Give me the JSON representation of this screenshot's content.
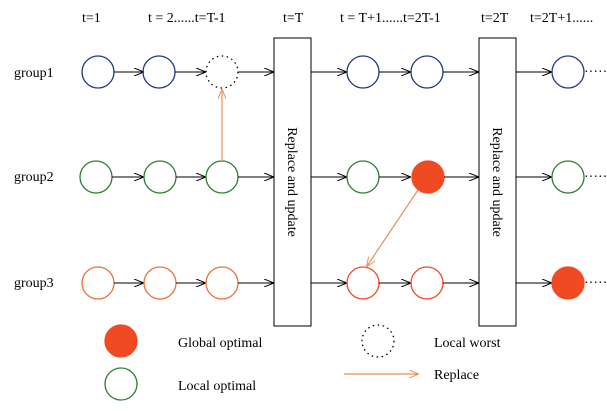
{
  "time_labels": {
    "t1": "t=1",
    "t2": "t = 2......t=T-1",
    "tT": "t=T",
    "tT1": "t = T+1......t=2T-1",
    "t2T": "t=2T",
    "t2T1": "t=2T+1......"
  },
  "groups": {
    "group1": "group1",
    "group2": "group2",
    "group3": "group3"
  },
  "boxes": {
    "box1": "Replace and update",
    "box2": "Replace and update"
  },
  "ellipsis": {
    "g1": "·······",
    "g2": "·······",
    "g3": "·······"
  },
  "legend": {
    "global_optimal": "Global optimal",
    "local_optimal": "Local optimal",
    "local_worst": "Local worst",
    "replace": "Replace"
  },
  "colors": {
    "group1_stroke": "#1f3a7a",
    "group2_stroke": "#2e7d32",
    "group3_stroke": "#e8703a",
    "global_optimal_fill": "#f04a23",
    "replace_arrow": "#e8915a",
    "line": "#000000"
  },
  "icons": {
    "global_optimal": "filled-red-circle-icon",
    "local_optimal": "green-outline-circle-icon",
    "local_worst": "dotted-circle-icon",
    "replace": "orange-arrow-icon"
  }
}
